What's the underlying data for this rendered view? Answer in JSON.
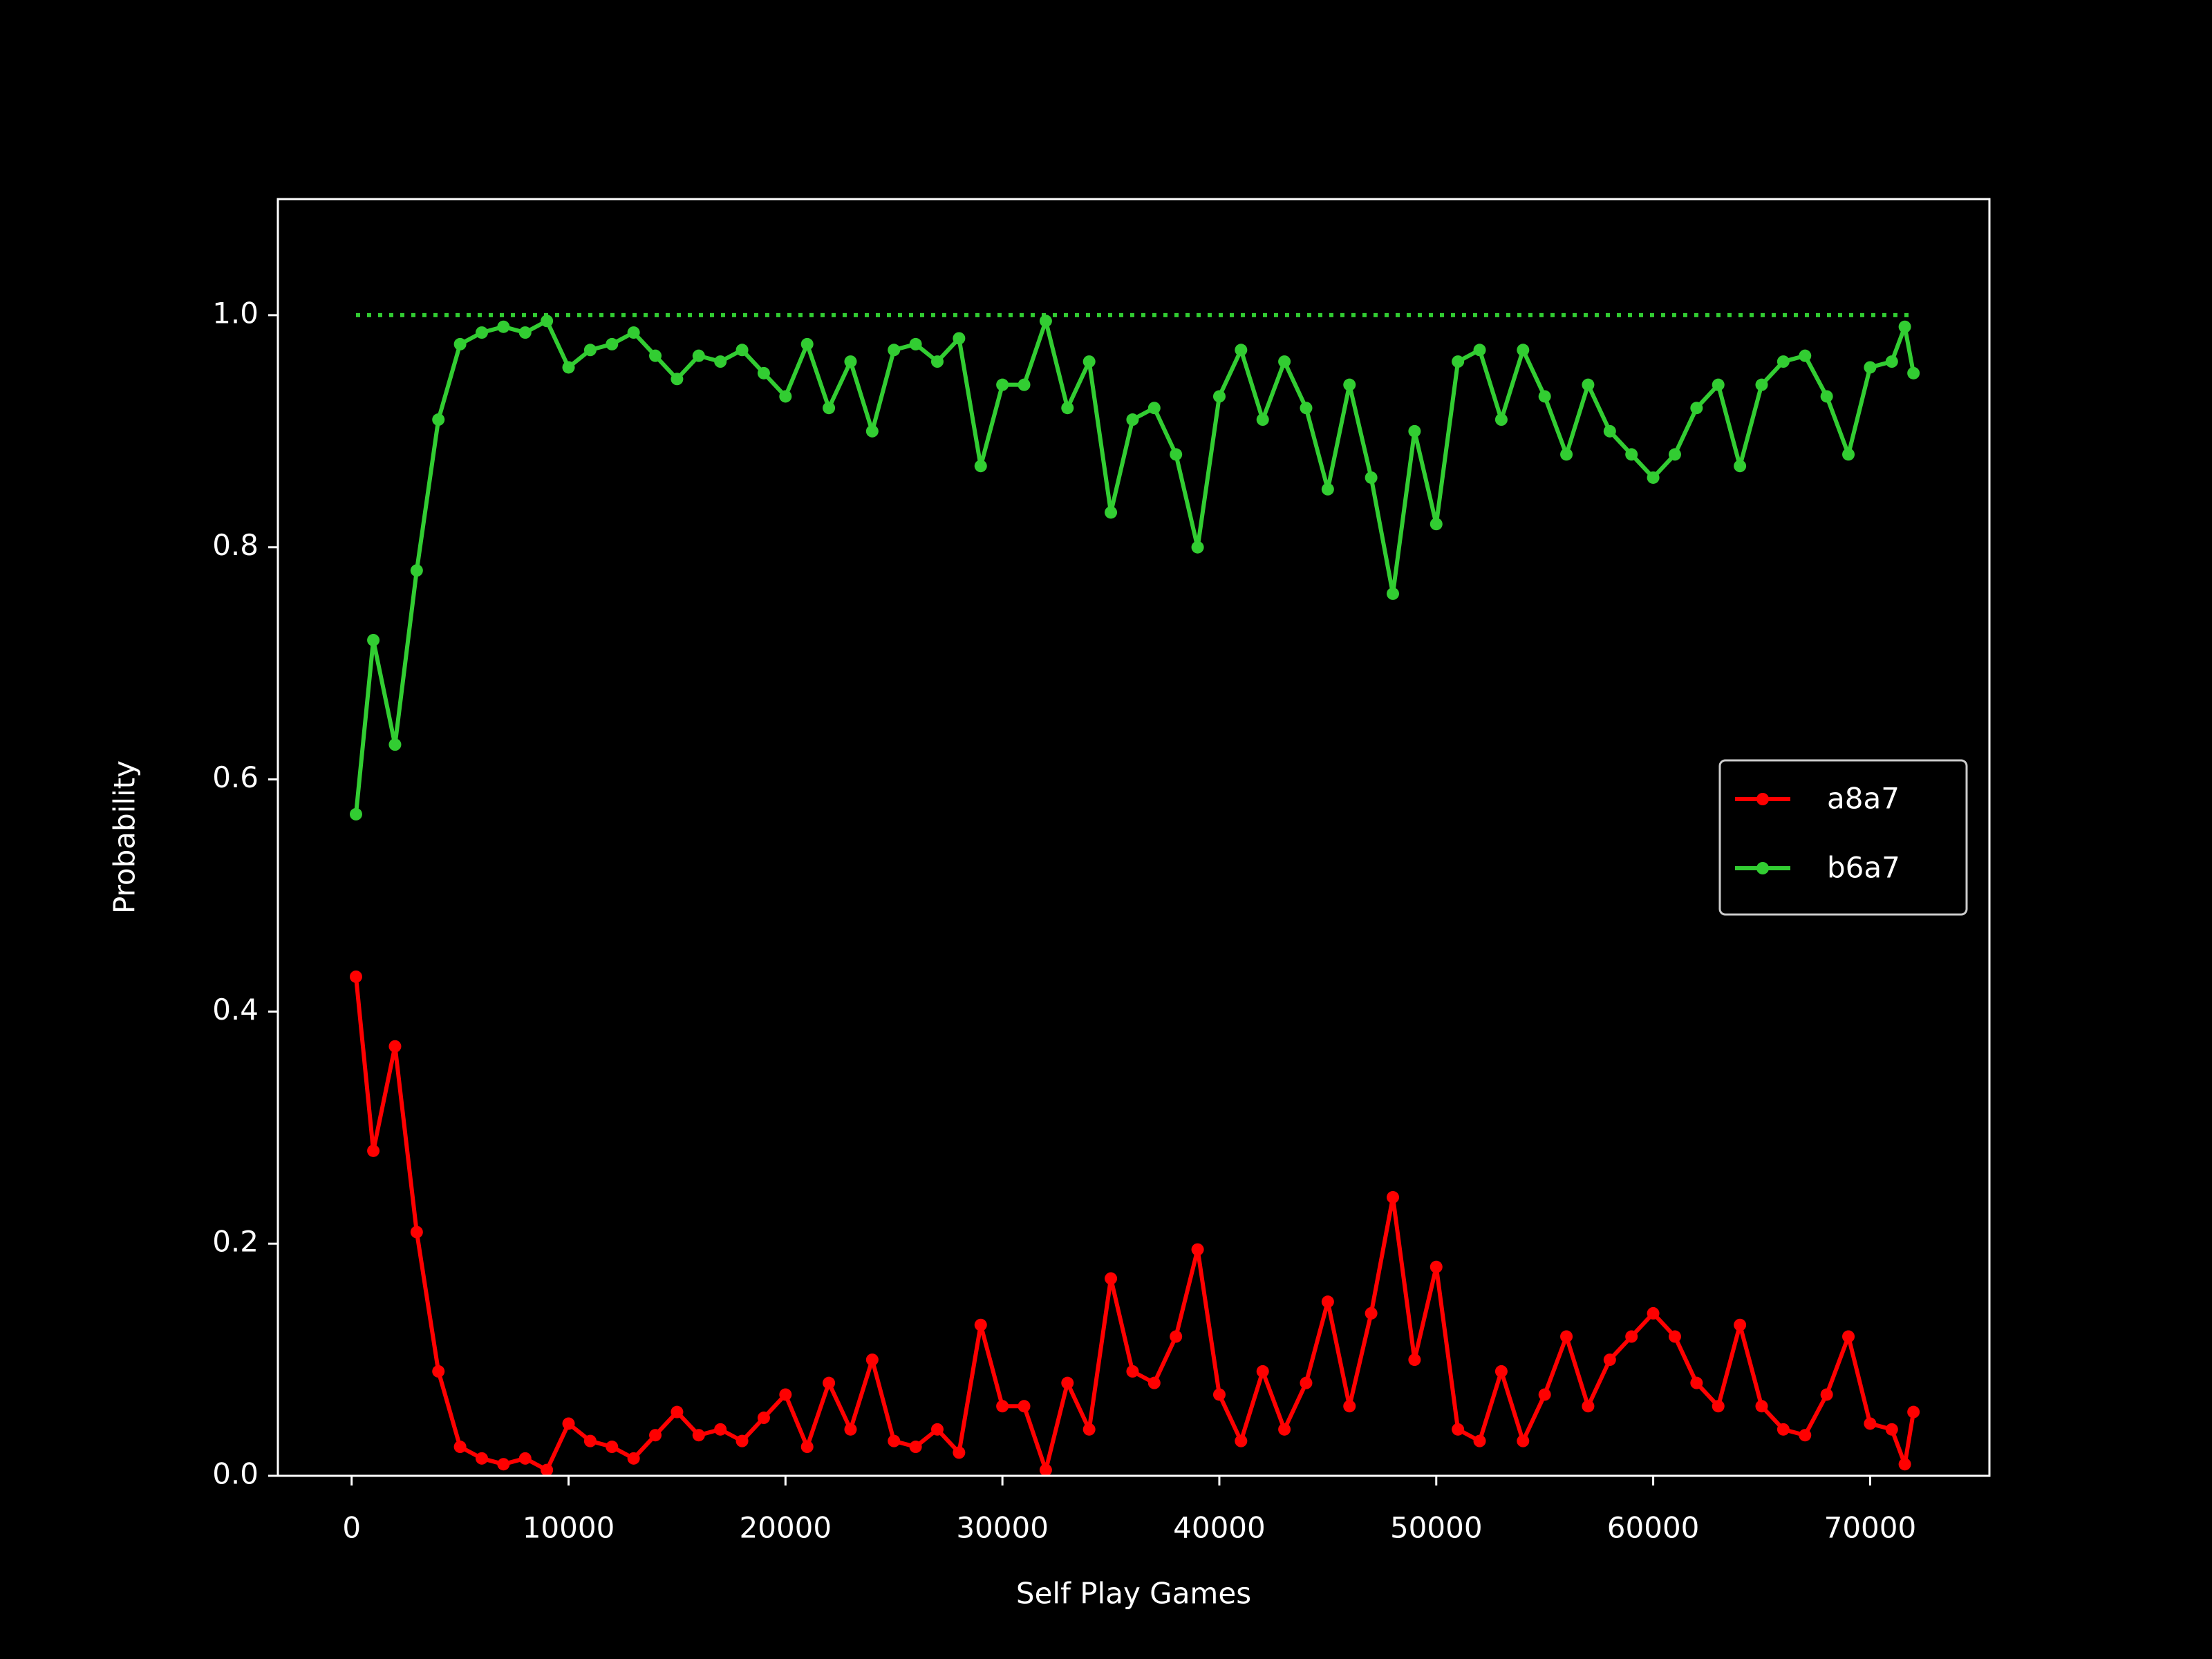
{
  "chart_data": {
    "type": "line",
    "x_label": "Self Play Games",
    "y_label": "Probability",
    "x": [
      200,
      1000,
      2000,
      3000,
      4000,
      5000,
      6000,
      7000,
      8000,
      9000,
      10000,
      11000,
      12000,
      13000,
      14000,
      15000,
      16000,
      17000,
      18000,
      19000,
      20000,
      21000,
      22000,
      23000,
      24000,
      25000,
      26000,
      27000,
      28000,
      29000,
      30000,
      31000,
      32000,
      33000,
      34000,
      35000,
      36000,
      37000,
      38000,
      39000,
      40000,
      41000,
      42000,
      43000,
      44000,
      45000,
      46000,
      47000,
      48000,
      49000,
      50000,
      51000,
      52000,
      53000,
      54000,
      55000,
      56000,
      57000,
      58000,
      59000,
      60000,
      61000,
      62000,
      63000,
      64000,
      65000,
      66000,
      67000,
      68000,
      69000,
      70000,
      71000,
      71600,
      72000
    ],
    "series": [
      {
        "name": "a8a7",
        "color": "#ff0000",
        "values": [
          0.43,
          0.28,
          0.37,
          0.21,
          0.09,
          0.025,
          0.015,
          0.01,
          0.015,
          0.005,
          0.045,
          0.03,
          0.025,
          0.015,
          0.035,
          0.055,
          0.035,
          0.04,
          0.03,
          0.05,
          0.07,
          0.025,
          0.08,
          0.04,
          0.1,
          0.03,
          0.025,
          0.04,
          0.02,
          0.13,
          0.06,
          0.06,
          0.005,
          0.08,
          0.04,
          0.17,
          0.09,
          0.08,
          0.12,
          0.195,
          0.07,
          0.03,
          0.09,
          0.04,
          0.08,
          0.15,
          0.06,
          0.14,
          0.24,
          0.1,
          0.18,
          0.04,
          0.03,
          0.09,
          0.03,
          0.07,
          0.12,
          0.06,
          0.1,
          0.12,
          0.14,
          0.12,
          0.08,
          0.06,
          0.13,
          0.06,
          0.04,
          0.035,
          0.07,
          0.12,
          0.045,
          0.04,
          0.01,
          0.055
        ]
      },
      {
        "name": "b6a7",
        "color": "#32cd32",
        "values": [
          0.57,
          0.72,
          0.63,
          0.78,
          0.91,
          0.975,
          0.985,
          0.99,
          0.985,
          0.995,
          0.955,
          0.97,
          0.975,
          0.985,
          0.965,
          0.945,
          0.965,
          0.96,
          0.97,
          0.95,
          0.93,
          0.975,
          0.92,
          0.96,
          0.9,
          0.97,
          0.975,
          0.96,
          0.98,
          0.87,
          0.94,
          0.94,
          0.995,
          0.92,
          0.96,
          0.83,
          0.91,
          0.92,
          0.88,
          0.8,
          0.93,
          0.97,
          0.91,
          0.96,
          0.92,
          0.85,
          0.94,
          0.86,
          0.76,
          0.9,
          0.82,
          0.96,
          0.97,
          0.91,
          0.97,
          0.93,
          0.88,
          0.94,
          0.9,
          0.88,
          0.86,
          0.88,
          0.92,
          0.94,
          0.87,
          0.94,
          0.96,
          0.965,
          0.93,
          0.88,
          0.955,
          0.96,
          0.99,
          0.95
        ]
      }
    ],
    "reference_line": {
      "y": 1,
      "x": [
        200,
        72000
      ],
      "color": "#32cd32",
      "style": "dotted"
    },
    "xlim": [
      -3400,
      75500
    ],
    "xticks": [
      0,
      10000,
      20000,
      30000,
      40000,
      50000,
      60000,
      70000
    ],
    "ylim": [
      0,
      1.1
    ],
    "yticks": [
      {
        "value": 0,
        "label": "0.0"
      },
      0.2,
      0.4,
      0.6,
      0.8,
      {
        "value": 1,
        "label": "1.0"
      }
    ],
    "legend": "center right"
  }
}
